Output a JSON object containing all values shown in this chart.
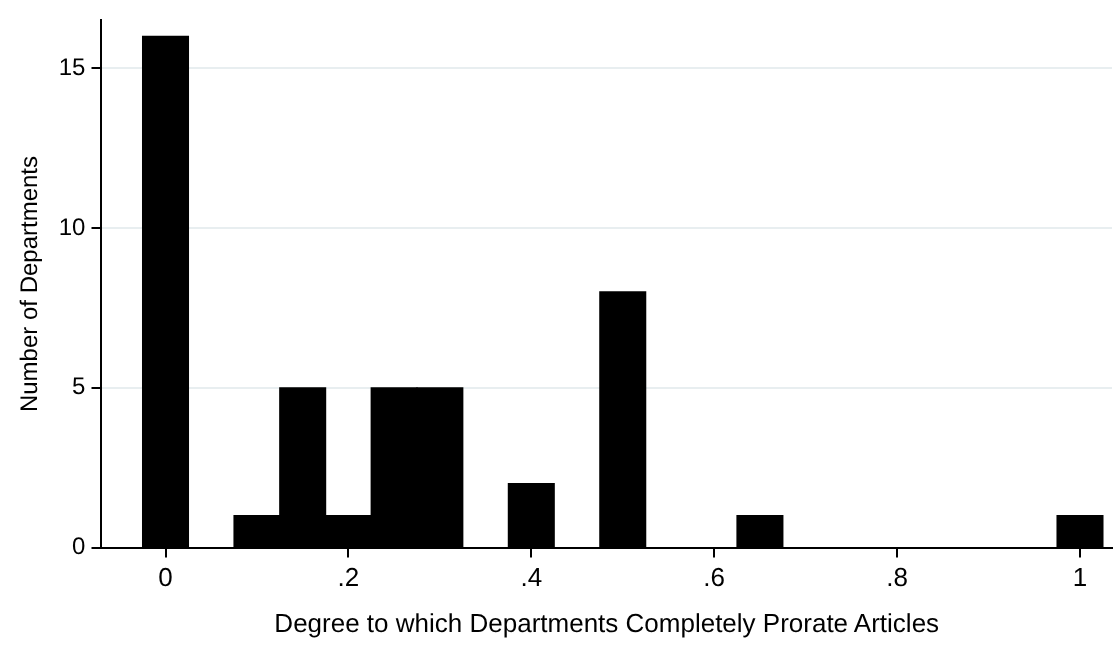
{
  "chart_data": {
    "type": "histogram",
    "xlabel": "Degree to which Departments Completely Prorate Articles",
    "ylabel": "Number of Departments",
    "bins": [
      -0.025,
      0.025,
      0.075,
      0.125,
      0.175,
      0.225,
      0.275,
      0.325,
      0.375,
      0.425,
      0.475,
      0.525,
      0.575,
      0.625,
      0.675,
      0.725,
      0.775,
      0.825,
      0.875,
      0.925,
      0.975,
      1.025
    ],
    "values": [
      16,
      0,
      1,
      5,
      1,
      5,
      5,
      0,
      2,
      0,
      8,
      0,
      0,
      1,
      0,
      0,
      0,
      0,
      0,
      0,
      1
    ],
    "color": "#000000",
    "xlim": [
      -0.07,
      1.035
    ],
    "xticks": [
      {
        "value": 0,
        "label": "0"
      },
      {
        "value": 0.2,
        "label": ".2"
      },
      {
        "value": 0.4,
        "label": ".4"
      },
      {
        "value": 0.6,
        "label": ".6"
      },
      {
        "value": 0.8,
        "label": ".8"
      },
      {
        "value": 1,
        "label": "1"
      }
    ],
    "ylim": [
      0,
      16.5
    ],
    "yticks": [
      0,
      5,
      10,
      15
    ],
    "grid": "y"
  }
}
